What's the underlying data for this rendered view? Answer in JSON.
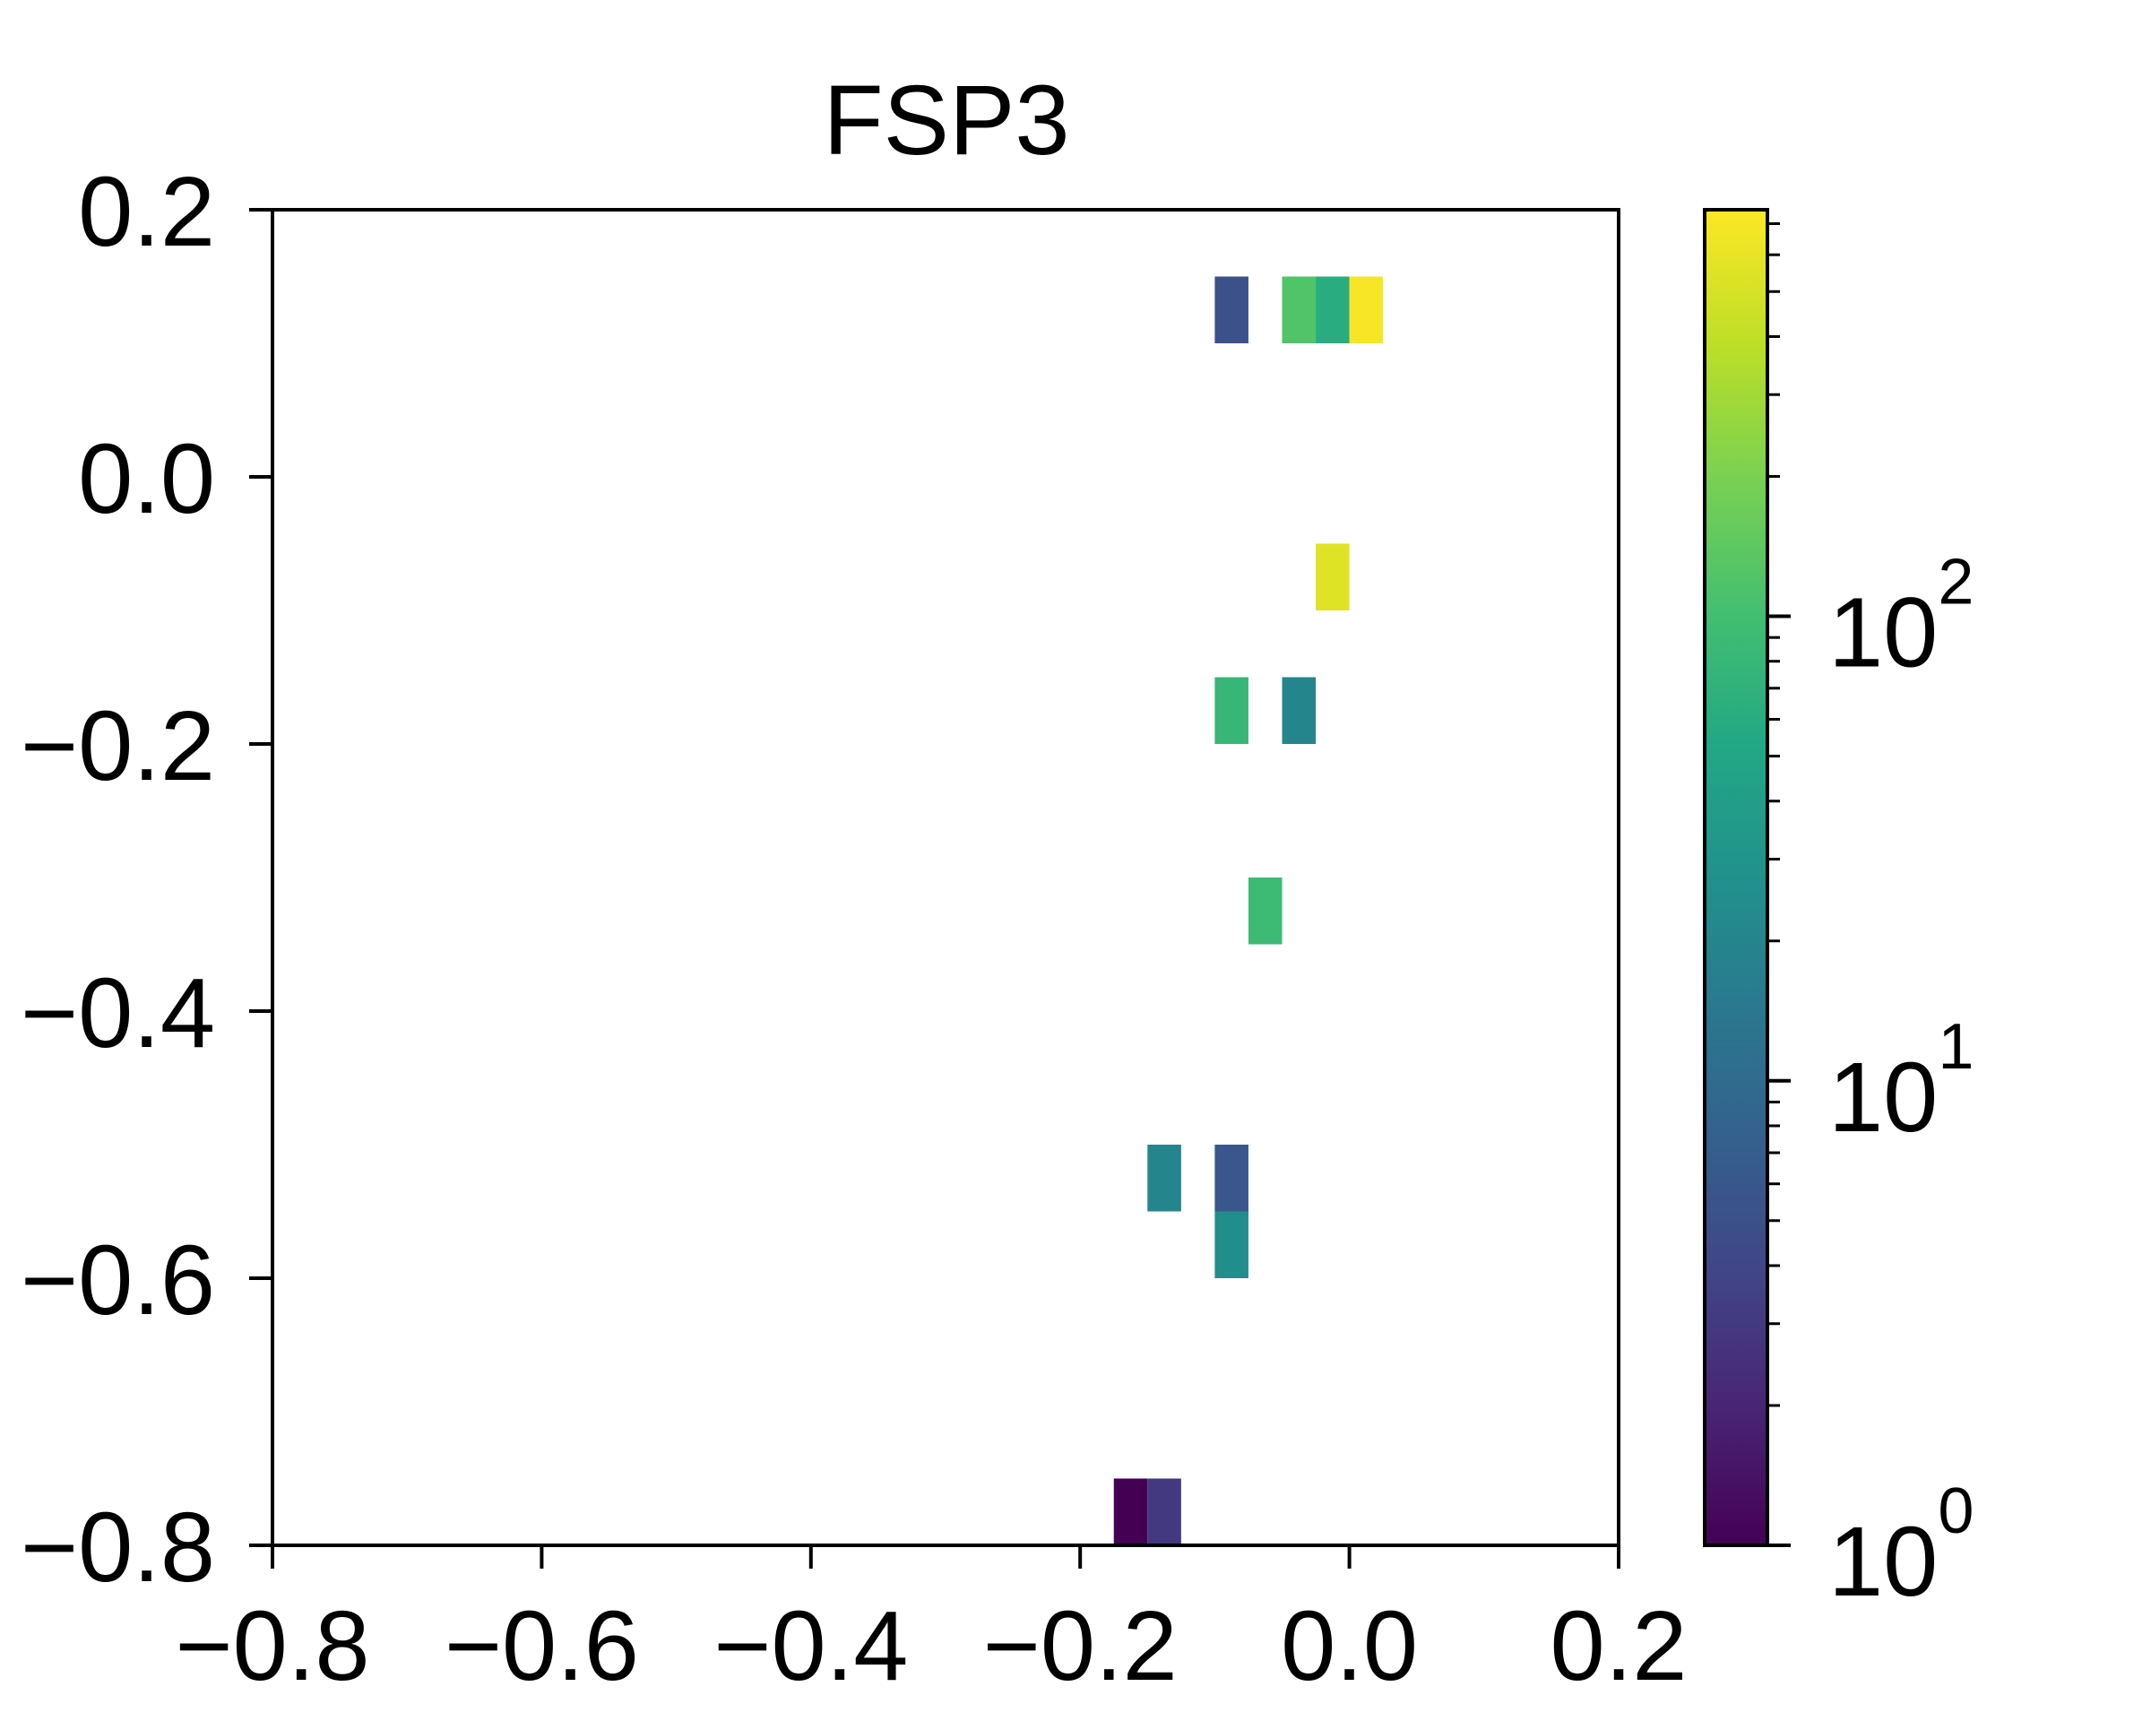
{
  "chart_data": {
    "type": "heatmap",
    "title": "FSP3",
    "xlabel": "",
    "ylabel": "",
    "xlim": [
      -0.8,
      0.2
    ],
    "ylim": [
      -0.8,
      0.2
    ],
    "x_ticks": [
      {
        "value": -0.8,
        "label": "−0.8"
      },
      {
        "value": -0.6,
        "label": "−0.6"
      },
      {
        "value": -0.4,
        "label": "−0.4"
      },
      {
        "value": -0.2,
        "label": "−0.2"
      },
      {
        "value": 0.0,
        "label": "0.0"
      },
      {
        "value": 0.2,
        "label": "0.2"
      }
    ],
    "y_ticks": [
      {
        "value": -0.8,
        "label": "−0.8"
      },
      {
        "value": -0.6,
        "label": "−0.6"
      },
      {
        "value": -0.4,
        "label": "−0.4"
      },
      {
        "value": -0.2,
        "label": "−0.2"
      },
      {
        "value": 0.0,
        "label": "0.0"
      },
      {
        "value": 0.2,
        "label": "0.2"
      }
    ],
    "bin_width": [
      0.025,
      0.05
    ],
    "cells": [
      {
        "x": -0.1,
        "y": 0.15,
        "value": 5
      },
      {
        "x": -0.05,
        "y": 0.15,
        "value": 120
      },
      {
        "x": -0.025,
        "y": 0.15,
        "value": 60
      },
      {
        "x": 0.0,
        "y": 0.15,
        "value": 700
      },
      {
        "x": -0.025,
        "y": -0.05,
        "value": 550
      },
      {
        "x": -0.1,
        "y": -0.15,
        "value": 80
      },
      {
        "x": -0.05,
        "y": -0.15,
        "value": 20
      },
      {
        "x": -0.075,
        "y": -0.3,
        "value": 90
      },
      {
        "x": -0.15,
        "y": -0.5,
        "value": 20
      },
      {
        "x": -0.1,
        "y": -0.5,
        "value": 6
      },
      {
        "x": -0.1,
        "y": -0.55,
        "value": 25
      },
      {
        "x": -0.175,
        "y": -0.8,
        "value": 1
      },
      {
        "x": -0.15,
        "y": -0.8,
        "value": 3
      }
    ],
    "colorbar": {
      "scale": "log",
      "colormap": "viridis",
      "range": [
        1,
        750
      ],
      "major_ticks": [
        {
          "value": 1,
          "base": "10",
          "exp": "0"
        },
        {
          "value": 10,
          "base": "10",
          "exp": "1"
        },
        {
          "value": 100,
          "base": "10",
          "exp": "2"
        }
      ]
    },
    "grid": false
  }
}
